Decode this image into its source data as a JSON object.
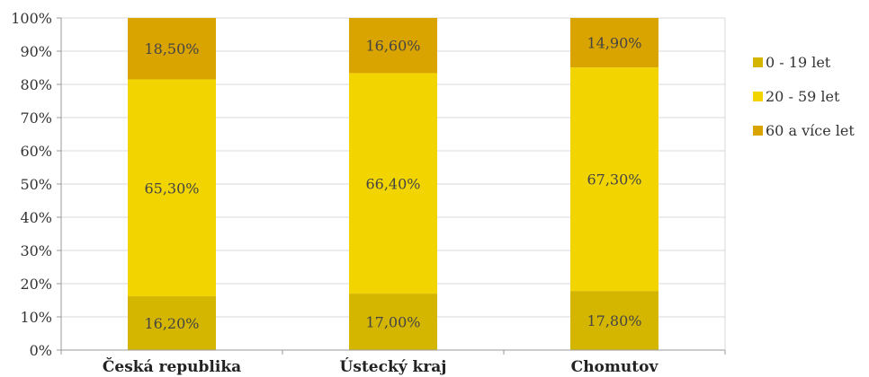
{
  "chart_data": {
    "type": "bar",
    "stacked": true,
    "percent_stacked": true,
    "categories": [
      "Česká republika",
      "Ústecký kraj",
      "Chomutov"
    ],
    "series": [
      {
        "name": "0 - 19 let",
        "values": [
          16.2,
          17.0,
          17.8
        ],
        "labels": [
          "16,20%",
          "17,00%",
          "17,80%"
        ],
        "color": "#D4B600"
      },
      {
        "name": "20 - 59 let",
        "values": [
          65.3,
          66.4,
          67.3
        ],
        "labels": [
          "65,30%",
          "66,40%",
          "67,30%"
        ],
        "color": "#F2D500"
      },
      {
        "name": "60 a více let",
        "values": [
          18.5,
          16.6,
          14.9
        ],
        "labels": [
          "18,50%",
          "16,60%",
          "14,90%"
        ],
        "color": "#D9A300"
      }
    ],
    "y_ticks": [
      "0%",
      "10%",
      "20%",
      "30%",
      "40%",
      "50%",
      "60%",
      "70%",
      "80%",
      "90%",
      "100%"
    ],
    "ylim": [
      0,
      100
    ],
    "grid": true,
    "legend_position": "right"
  }
}
